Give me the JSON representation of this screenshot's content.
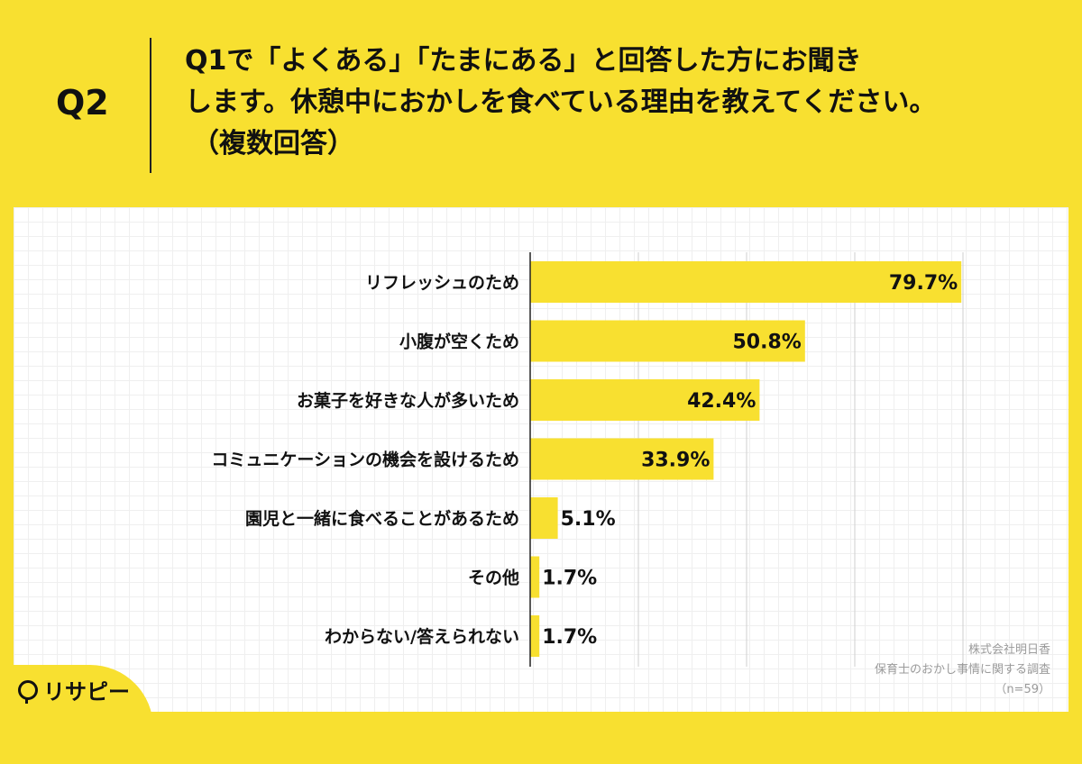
{
  "header": {
    "q_label": "Q2",
    "question_lines": [
      "Q1で「よくある」「たまにある」と回答した方にお聞き",
      "します。休憩中におかしを食べている理由を教えてください。",
      "（複数回答）"
    ]
  },
  "chart_data": {
    "type": "bar",
    "orientation": "horizontal",
    "categories": [
      "リフレッシュのため",
      "小腹が空くため",
      "お菓子を好きな人が多いため",
      "コミュニケーションの機会を設けるため",
      "園児と一緒に食べることがあるため",
      "その他",
      "わからない/答えられない"
    ],
    "values": [
      79.7,
      50.8,
      42.4,
      33.9,
      5.1,
      1.7,
      1.7
    ],
    "value_labels": [
      "79.7%",
      "50.8%",
      "42.4%",
      "33.9%",
      "5.1%",
      "1.7%",
      "1.7%"
    ],
    "xlim": [
      0,
      80
    ],
    "grid": true,
    "bar_color": "#f8e030"
  },
  "footer": {
    "source_lines": [
      "株式会社明日香",
      "保育士のおかし事情に関する調査",
      "（n=59）"
    ],
    "logo_text": "リサピー"
  }
}
